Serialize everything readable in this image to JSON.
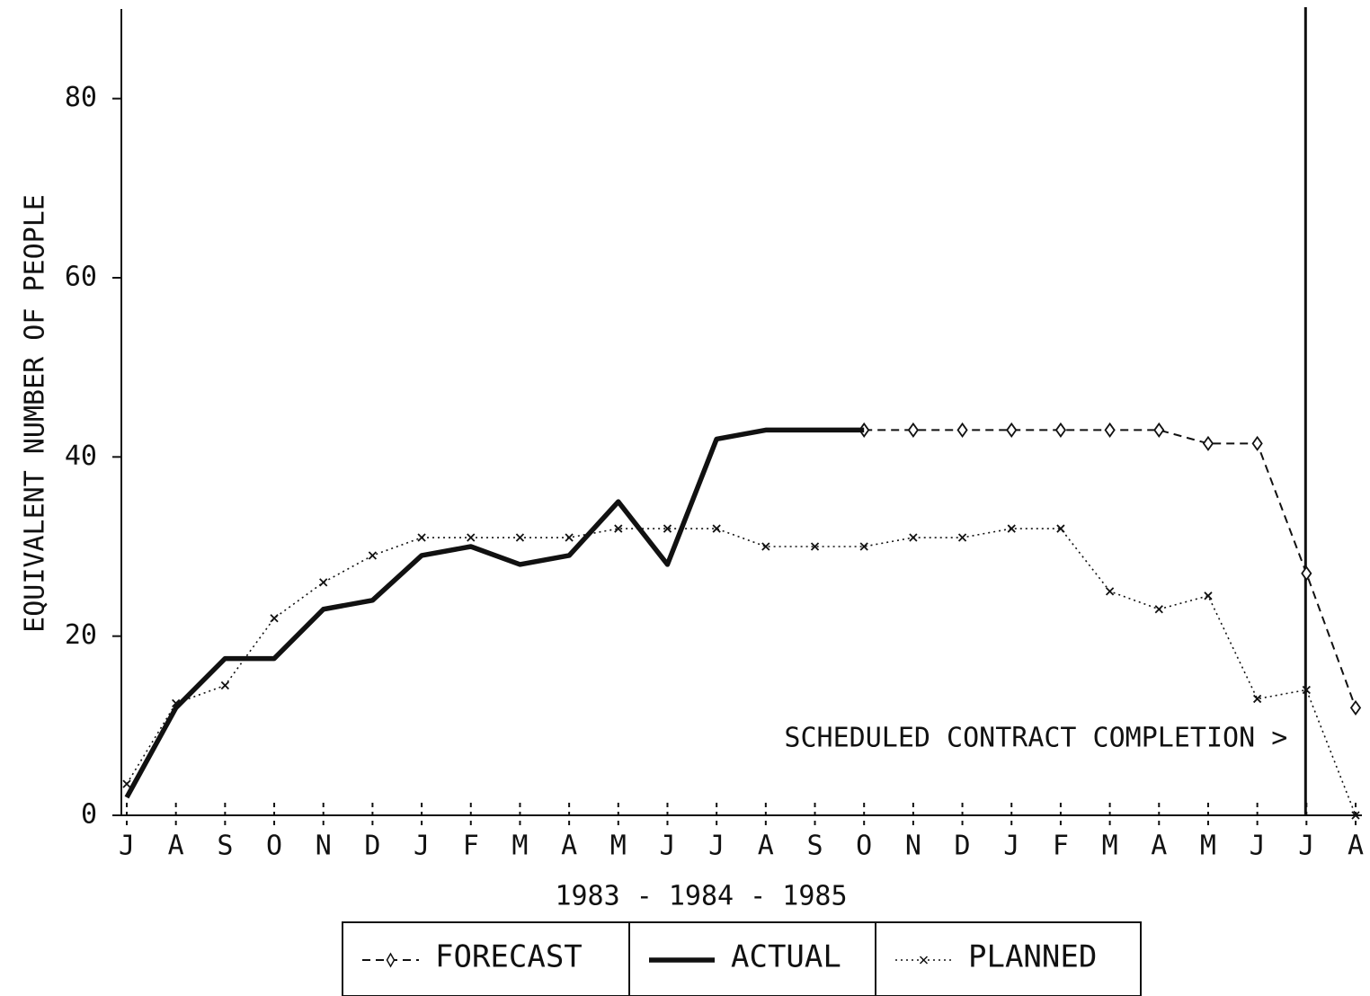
{
  "chart_data": {
    "type": "line",
    "ylabel": "EQUIVALENT NUMBER OF PEOPLE",
    "xlabel": "1983 - 1984 - 1985",
    "categories": [
      "J",
      "A",
      "S",
      "O",
      "N",
      "D",
      "J",
      "F",
      "M",
      "A",
      "M",
      "J",
      "J",
      "A",
      "S",
      "O",
      "N",
      "D",
      "J",
      "F",
      "M",
      "A",
      "M",
      "J",
      "J",
      "A"
    ],
    "ylim": [
      0,
      90
    ],
    "yticks": [
      0,
      20,
      40,
      60,
      80
    ],
    "series": [
      {
        "name": "FORECAST",
        "color": "#111111",
        "style": "dashed",
        "marker": "diamond",
        "values": [
          null,
          null,
          null,
          null,
          null,
          null,
          null,
          null,
          null,
          null,
          null,
          null,
          null,
          null,
          null,
          43,
          43,
          43,
          43,
          43,
          43,
          43,
          41.5,
          41.5,
          27,
          12
        ]
      },
      {
        "name": "ACTUAL",
        "color": "#111111",
        "style": "solid",
        "marker": "none",
        "values": [
          2,
          12,
          17.5,
          17.5,
          23,
          24,
          29,
          30,
          28,
          29,
          35,
          28,
          42,
          43,
          43,
          43,
          null,
          null,
          null,
          null,
          null,
          null,
          null,
          null,
          null,
          null
        ]
      },
      {
        "name": "PLANNED",
        "color": "#111111",
        "style": "dotted",
        "marker": "x",
        "values": [
          3.5,
          12.5,
          14.5,
          22,
          26,
          29,
          31,
          31,
          31,
          31,
          32,
          32,
          32,
          30,
          30,
          30,
          31,
          31,
          32,
          32,
          25,
          23,
          24.5,
          13,
          14,
          0
        ]
      }
    ],
    "annotations": [
      {
        "text": "SCHEDULED CONTRACT COMPLETION >",
        "x_index": 24
      }
    ],
    "legend": "bottom"
  }
}
